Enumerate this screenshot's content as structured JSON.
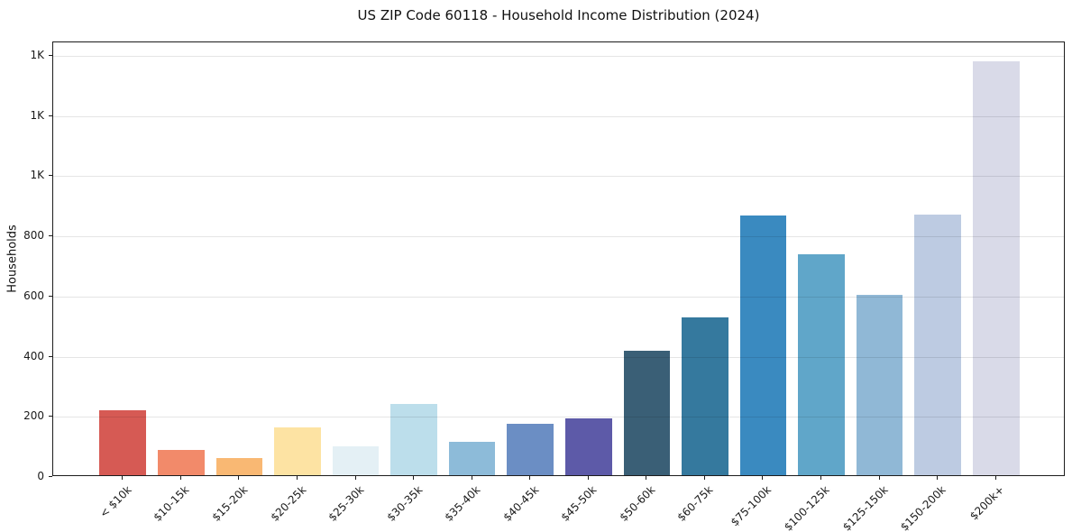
{
  "chart_data": {
    "type": "bar",
    "title": "US ZIP Code 60118 - Household Income Distribution (2024)",
    "xlabel": "",
    "ylabel": "Households",
    "categories": [
      "< $10k",
      "$10-15k",
      "$15-20k",
      "$20-25k",
      "$25-30k",
      "$30-35k",
      "$35-40k",
      "$40-45k",
      "$45-50k",
      "$50-60k",
      "$60-75k",
      "$75-100k",
      "$100-125k",
      "$125-150k",
      "$150-200k",
      "$200k+"
    ],
    "values": [
      215,
      83,
      58,
      158,
      97,
      236,
      110,
      170,
      190,
      415,
      525,
      862,
      735,
      600,
      865,
      1375
    ],
    "bar_colors": [
      "#d65a54",
      "#f28a6a",
      "#f9b873",
      "#fde3a3",
      "#e4f0f5",
      "#bcdeeb",
      "#8dbbd9",
      "#6b8ec4",
      "#5d5aa8",
      "#3a5f76",
      "#35799e",
      "#3a8ac0",
      "#60a6c9",
      "#90b8d6",
      "#bdcbe2",
      "#d9dae8"
    ],
    "ylim": [
      0,
      1445
    ],
    "yticks": [
      {
        "value": 0,
        "label": "0"
      },
      {
        "value": 200,
        "label": "200"
      },
      {
        "value": 400,
        "label": "400"
      },
      {
        "value": 600,
        "label": "600"
      },
      {
        "value": 800,
        "label": "800"
      },
      {
        "value": 1000,
        "label": "1K"
      },
      {
        "value": 1200,
        "label": "1K"
      },
      {
        "value": 1400,
        "label": "1K"
      }
    ],
    "grid": "horizontal gridlines at y ticks, drawn over bars",
    "legend": false,
    "bar_width_fraction": 0.8,
    "x_tick_label_rotation_deg": 45
  },
  "colors": {
    "background": "#ffffff",
    "gridline_rgba": "rgba(0,0,0,0.10)",
    "spine": "#1c1c1c",
    "text": "#1a1a1a"
  }
}
